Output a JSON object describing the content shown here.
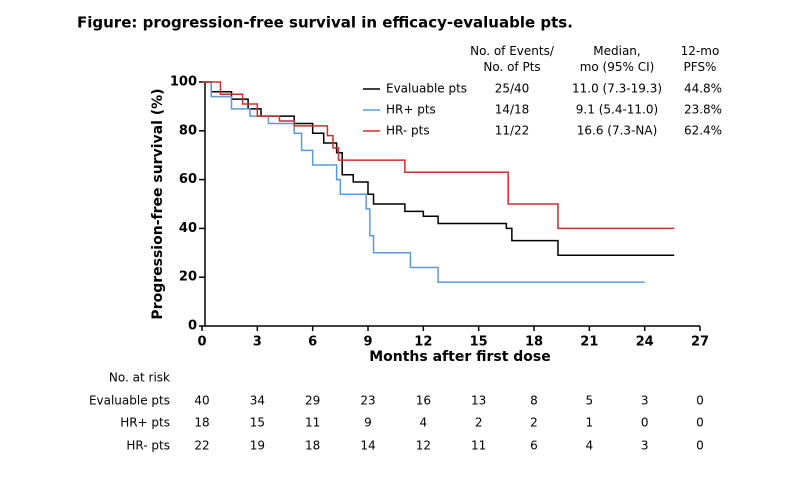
{
  "chart_data": {
    "type": "line",
    "step": "post",
    "title": "Figure: progression-free survival in efficacy-evaluable pts.",
    "xlabel": "Months after first dose",
    "ylabel": "Progression-free survival (%)",
    "xlim": [
      0,
      27
    ],
    "ylim": [
      0,
      100
    ],
    "xticks": [
      0,
      3,
      6,
      9,
      12,
      15,
      18,
      21,
      24,
      27
    ],
    "yticks": [
      0,
      20,
      40,
      60,
      80,
      100
    ],
    "columns": [
      "No. of Events/ No. of Pts",
      "Median, mo (95% CI)",
      "12-mo PFS%"
    ],
    "risk_title": "No. at risk",
    "series": [
      {
        "name": "Evaluable pts",
        "color": "#000000",
        "x": [
          0,
          0.5,
          1.6,
          2.5,
          3.2,
          5,
          6,
          6.6,
          7.3,
          7.6,
          8.2,
          9,
          9.3,
          11,
          12,
          12.8,
          16.5,
          16.8,
          19.3,
          25.6
        ],
        "values": [
          100,
          96,
          93,
          89,
          86,
          83,
          79,
          75,
          71,
          62,
          59,
          54,
          50,
          47,
          45,
          42,
          40,
          35,
          29,
          29
        ],
        "events": "25/40",
        "median": "11.0 (7.3-19.3)",
        "pfs12": "44.8%",
        "at_risk": [
          40,
          34,
          29,
          23,
          16,
          13,
          8,
          5,
          3,
          0
        ]
      },
      {
        "name": "HR+ pts",
        "color": "#5b9bd5",
        "x": [
          0,
          0.5,
          1.6,
          2.6,
          3.6,
          5,
          5.4,
          6,
          7.3,
          7.5,
          8.9,
          9.1,
          9.3,
          11.3,
          12.8,
          24
        ],
        "values": [
          100,
          94,
          89,
          86,
          83,
          79,
          72,
          66,
          60,
          54,
          48,
          37,
          30,
          24,
          18,
          18
        ],
        "events": "14/18",
        "median": "9.1 (5.4-11.0)",
        "pfs12": "23.8%",
        "at_risk": [
          18,
          15,
          11,
          9,
          4,
          2,
          2,
          1,
          0,
          0
        ]
      },
      {
        "name": "HR- pts",
        "color": "#c8302c",
        "x": [
          0,
          1,
          2.2,
          3,
          4.2,
          5,
          6.8,
          7.1,
          7.4,
          11,
          16.6,
          19.3,
          25.6
        ],
        "values": [
          100,
          95,
          91,
          86,
          84,
          82,
          78,
          73,
          68,
          63,
          50,
          40,
          40
        ],
        "events": "11/22",
        "median": "16.6 (7.3-NA)",
        "pfs12": "62.4%",
        "at_risk": [
          22,
          19,
          18,
          14,
          12,
          11,
          6,
          4,
          3,
          0
        ]
      }
    ]
  }
}
